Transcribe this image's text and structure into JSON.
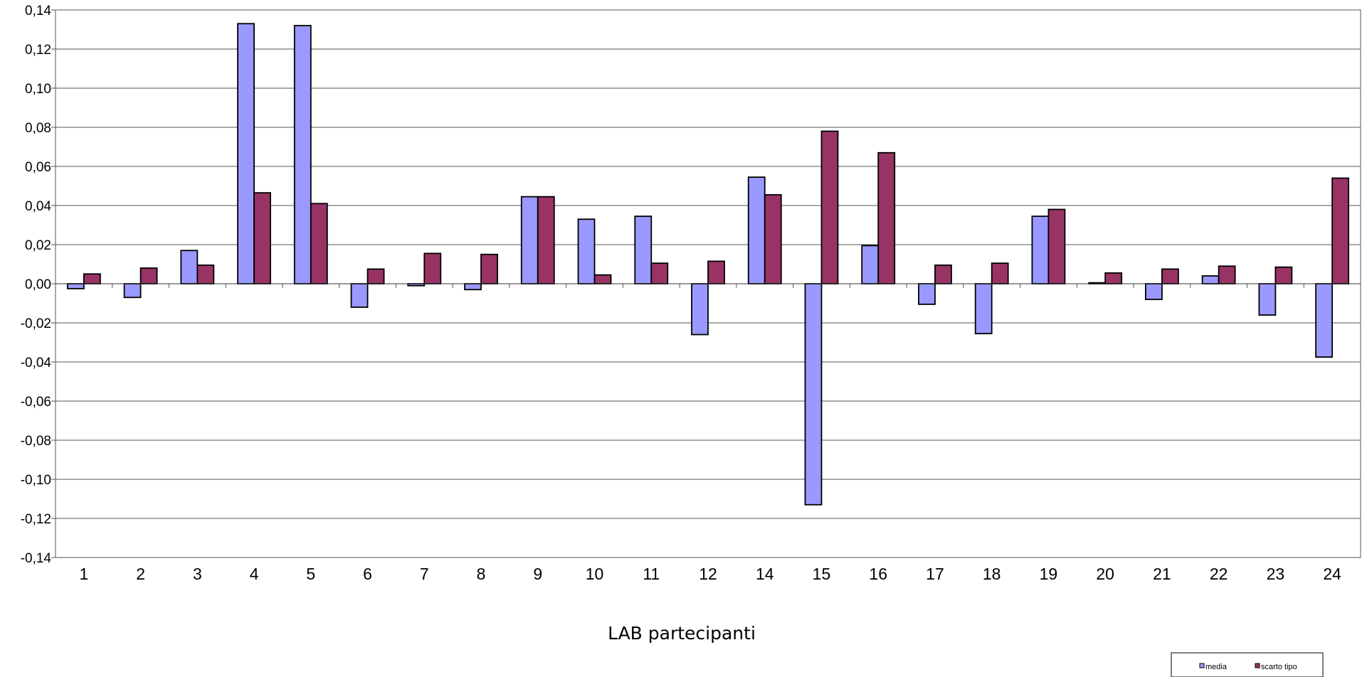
{
  "chart_data": {
    "type": "bar",
    "title": "",
    "xlabel": "LAB partecipanti",
    "ylabel": "",
    "ylim": [
      -0.14,
      0.14
    ],
    "yticks": [
      0.14,
      0.12,
      0.1,
      0.08,
      0.06,
      0.04,
      0.02,
      0.0,
      -0.02,
      -0.04,
      -0.06,
      -0.08,
      -0.1,
      -0.12,
      -0.14
    ],
    "ytick_labels": [
      "0,14",
      "0,12",
      "0,10",
      "0,08",
      "0,06",
      "0,04",
      "0,02",
      "0,00",
      "-0,02",
      "-0,04",
      "-0,06",
      "-0,08",
      "-0,10",
      "-0,12",
      "-0,14"
    ],
    "grid": true,
    "legend_position": "bottom-right",
    "categories": [
      "1",
      "2",
      "3",
      "4",
      "5",
      "6",
      "7",
      "8",
      "9",
      "10",
      "11",
      "12",
      "14",
      "15",
      "16",
      "17",
      "18",
      "19",
      "20",
      "21",
      "22",
      "23",
      "24"
    ],
    "series": [
      {
        "name": "media",
        "color": "#9999ff",
        "values": [
          -0.0025,
          -0.007,
          0.017,
          0.133,
          0.132,
          -0.012,
          -0.001,
          -0.003,
          0.0445,
          0.033,
          0.0345,
          -0.026,
          0.0545,
          -0.113,
          0.0195,
          -0.0105,
          -0.0255,
          0.0345,
          0.0005,
          -0.008,
          0.004,
          -0.016,
          -0.0375
        ]
      },
      {
        "name": "scarto tipo",
        "color": "#993366",
        "values": [
          0.005,
          0.008,
          0.0095,
          0.0465,
          0.041,
          0.0075,
          0.0155,
          0.015,
          0.0445,
          0.0045,
          0.0105,
          0.0115,
          0.0455,
          0.078,
          0.067,
          0.0095,
          0.0105,
          0.038,
          0.0055,
          0.0075,
          0.009,
          0.0085,
          0.054
        ]
      }
    ]
  }
}
